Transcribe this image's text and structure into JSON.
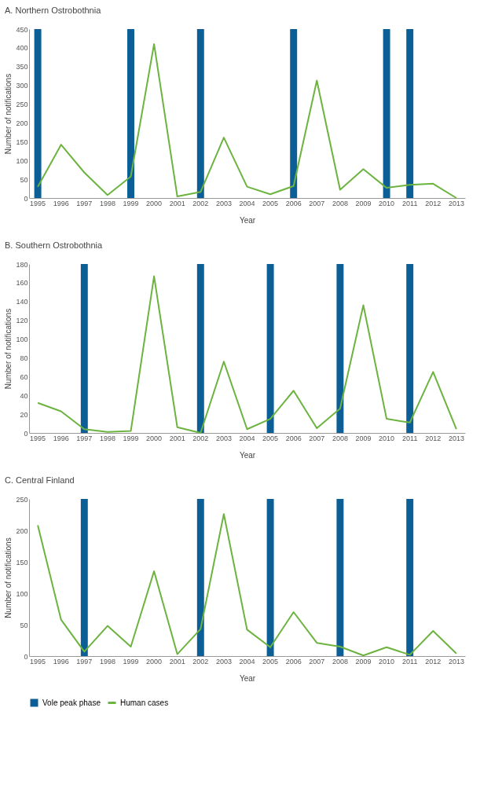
{
  "chart_data": [
    {
      "type": "line",
      "title": "A. Northern Ostrobothnia",
      "xlabel": "Year",
      "ylabel": "Number of notifications",
      "categories": [
        "1995",
        "1996",
        "1997",
        "1998",
        "1999",
        "2000",
        "2001",
        "2002",
        "2003",
        "2004",
        "2005",
        "2006",
        "2007",
        "2008",
        "2009",
        "2010",
        "2011",
        "2012",
        "2013"
      ],
      "ylim": [
        0,
        450
      ],
      "yticks": [
        0,
        50,
        100,
        150,
        200,
        250,
        300,
        350,
        400,
        450
      ],
      "grid": false,
      "legend": false,
      "series": [
        {
          "type": "bar",
          "color": "#0b5f96",
          "values": [
            450,
            null,
            null,
            null,
            450,
            null,
            null,
            450,
            null,
            null,
            null,
            450,
            null,
            null,
            null,
            450,
            450,
            null,
            null
          ]
        },
        {
          "color": "#6cb33f",
          "values": [
            30,
            142,
            68,
            8,
            57,
            410,
            4,
            16,
            161,
            30,
            10,
            32,
            313,
            22,
            77,
            27,
            35,
            38,
            0
          ]
        }
      ]
    },
    {
      "type": "line",
      "title": "B. Southern Ostrobothnia",
      "xlabel": "Year",
      "ylabel": "Number of notifications",
      "categories": [
        "1995",
        "1996",
        "1997",
        "1998",
        "1999",
        "2000",
        "2001",
        "2002",
        "2003",
        "2004",
        "2005",
        "2006",
        "2007",
        "2008",
        "2009",
        "2010",
        "2011",
        "2012",
        "2013"
      ],
      "ylim": [
        0,
        180
      ],
      "yticks": [
        0,
        20,
        40,
        60,
        80,
        100,
        120,
        140,
        160,
        180
      ],
      "grid": false,
      "legend": false,
      "series": [
        {
          "type": "bar",
          "color": "#0b5f96",
          "values": [
            null,
            null,
            180,
            null,
            null,
            null,
            null,
            180,
            null,
            null,
            180,
            null,
            null,
            180,
            null,
            null,
            180,
            null,
            null
          ]
        },
        {
          "color": "#6cb33f",
          "values": [
            32,
            23,
            4,
            1,
            2,
            167,
            6,
            0,
            76,
            4,
            15,
            45,
            5,
            26,
            136,
            15,
            11,
            65,
            4
          ]
        }
      ]
    },
    {
      "type": "line",
      "title": "C. Central Finland",
      "xlabel": "Year",
      "ylabel": "Number of notifications",
      "categories": [
        "1995",
        "1996",
        "1997",
        "1998",
        "1999",
        "2000",
        "2001",
        "2002",
        "2003",
        "2004",
        "2005",
        "2006",
        "2007",
        "2008",
        "2009",
        "2010",
        "2011",
        "2012",
        "2013"
      ],
      "ylim": [
        0,
        250
      ],
      "yticks": [
        0,
        50,
        100,
        150,
        200,
        250
      ],
      "grid": false,
      "legend": "bottom",
      "series": [
        {
          "type": "bar",
          "name": "Vole peak phase",
          "color": "#0b5f96",
          "values": [
            null,
            null,
            250,
            null,
            null,
            null,
            null,
            250,
            null,
            null,
            250,
            null,
            null,
            250,
            null,
            null,
            250,
            null,
            null
          ]
        },
        {
          "name": "Human cases",
          "color": "#6cb33f",
          "values": [
            208,
            58,
            7,
            48,
            15,
            135,
            3,
            43,
            226,
            42,
            14,
            70,
            21,
            15,
            1,
            14,
            2,
            40,
            4
          ]
        }
      ]
    }
  ]
}
